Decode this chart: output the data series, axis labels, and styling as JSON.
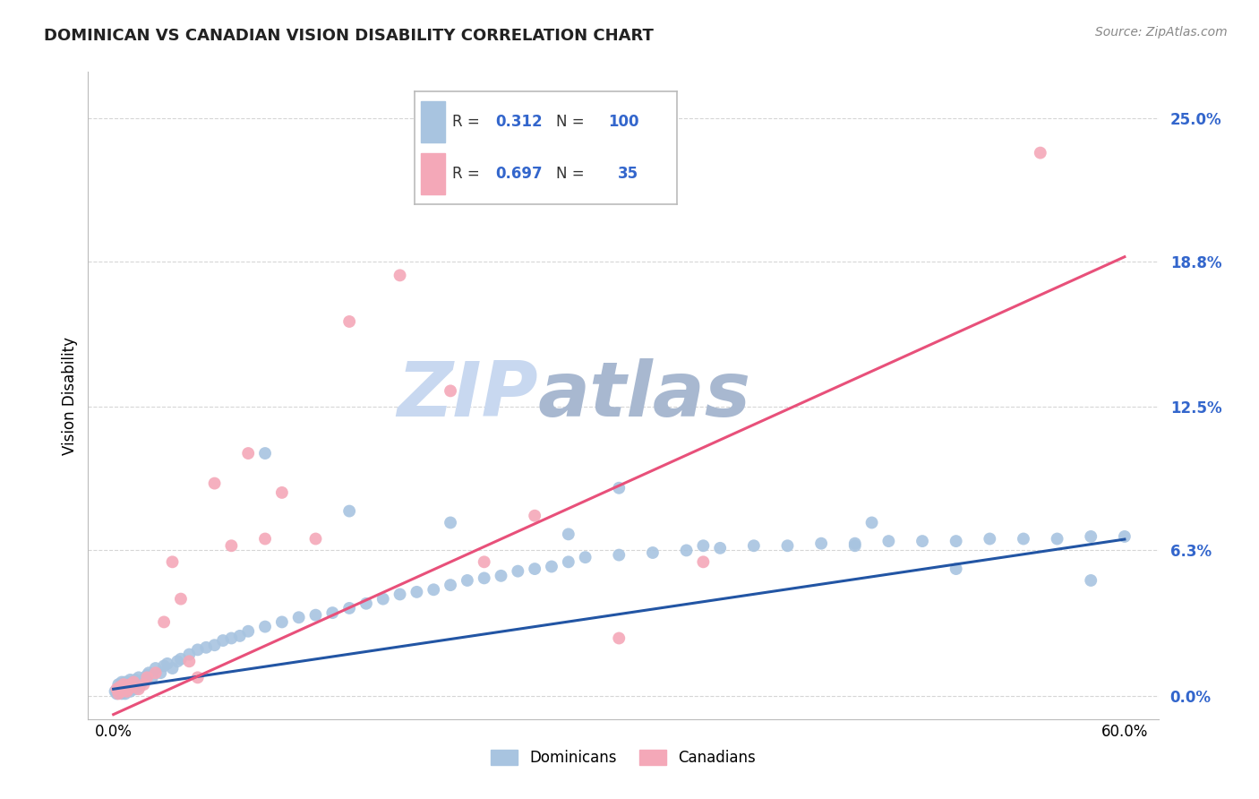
{
  "title": "DOMINICAN VS CANADIAN VISION DISABILITY CORRELATION CHART",
  "source": "Source: ZipAtlas.com",
  "ylabel": "Vision Disability",
  "ytick_labels": [
    "0.0%",
    "6.3%",
    "12.5%",
    "18.8%",
    "25.0%"
  ],
  "ytick_values": [
    0.0,
    6.3,
    12.5,
    18.8,
    25.0
  ],
  "xmin": 0.0,
  "xmax": 60.0,
  "ymin": -1.0,
  "ymax": 27.0,
  "blue_R": "0.312",
  "blue_N": "100",
  "pink_R": "0.697",
  "pink_N": "35",
  "blue_color": "#A8C4E0",
  "pink_color": "#F4A8B8",
  "blue_line_color": "#2255A4",
  "pink_line_color": "#E8507A",
  "legend_R_color": "#3366CC",
  "watermark_zip_color": "#C8D8F0",
  "watermark_atlas_color": "#A8B8D0",
  "background_color": "#FFFFFF",
  "grid_color": "#CCCCCC",
  "blue_x": [
    0.1,
    0.2,
    0.3,
    0.3,
    0.4,
    0.4,
    0.5,
    0.5,
    0.5,
    0.6,
    0.6,
    0.6,
    0.7,
    0.7,
    0.7,
    0.8,
    0.8,
    0.8,
    0.9,
    0.9,
    1.0,
    1.0,
    1.0,
    1.1,
    1.1,
    1.2,
    1.2,
    1.3,
    1.3,
    1.4,
    1.5,
    1.5,
    1.6,
    1.7,
    1.8,
    1.9,
    2.0,
    2.1,
    2.3,
    2.5,
    2.8,
    3.0,
    3.2,
    3.5,
    3.8,
    4.0,
    4.5,
    5.0,
    5.5,
    6.0,
    6.5,
    7.0,
    7.5,
    8.0,
    9.0,
    10.0,
    11.0,
    12.0,
    13.0,
    14.0,
    15.0,
    16.0,
    17.0,
    18.0,
    19.0,
    20.0,
    21.0,
    22.0,
    23.0,
    24.0,
    25.0,
    26.0,
    27.0,
    28.0,
    30.0,
    32.0,
    34.0,
    36.0,
    38.0,
    40.0,
    42.0,
    44.0,
    46.0,
    48.0,
    50.0,
    52.0,
    54.0,
    56.0,
    58.0,
    60.0,
    9.0,
    14.0,
    20.0,
    27.0,
    35.0,
    44.0,
    50.0,
    58.0,
    30.0,
    45.0
  ],
  "blue_y": [
    0.2,
    0.1,
    0.3,
    0.5,
    0.2,
    0.4,
    0.1,
    0.3,
    0.6,
    0.2,
    0.4,
    0.5,
    0.1,
    0.3,
    0.6,
    0.2,
    0.4,
    0.5,
    0.3,
    0.6,
    0.2,
    0.4,
    0.7,
    0.3,
    0.5,
    0.4,
    0.6,
    0.3,
    0.7,
    0.5,
    0.4,
    0.8,
    0.5,
    0.6,
    0.7,
    0.8,
    0.9,
    1.0,
    0.8,
    1.2,
    1.0,
    1.3,
    1.4,
    1.2,
    1.5,
    1.6,
    1.8,
    2.0,
    2.1,
    2.2,
    2.4,
    2.5,
    2.6,
    2.8,
    3.0,
    3.2,
    3.4,
    3.5,
    3.6,
    3.8,
    4.0,
    4.2,
    4.4,
    4.5,
    4.6,
    4.8,
    5.0,
    5.1,
    5.2,
    5.4,
    5.5,
    5.6,
    5.8,
    6.0,
    6.1,
    6.2,
    6.3,
    6.4,
    6.5,
    6.5,
    6.6,
    6.6,
    6.7,
    6.7,
    6.7,
    6.8,
    6.8,
    6.8,
    6.9,
    6.9,
    10.5,
    8.0,
    7.5,
    7.0,
    6.5,
    6.5,
    5.5,
    5.0,
    9.0,
    7.5
  ],
  "pink_x": [
    0.2,
    0.3,
    0.4,
    0.5,
    0.6,
    0.6,
    0.7,
    0.8,
    0.9,
    1.0,
    1.1,
    1.2,
    1.5,
    1.8,
    2.0,
    2.5,
    3.0,
    3.5,
    4.0,
    4.5,
    5.0,
    6.0,
    7.0,
    8.0,
    9.0,
    10.0,
    12.0,
    14.0,
    17.0,
    20.0,
    22.0,
    25.0,
    30.0,
    35.0,
    55.0
  ],
  "pink_y": [
    0.3,
    0.1,
    0.4,
    0.2,
    0.3,
    0.5,
    0.4,
    0.2,
    0.3,
    0.5,
    0.4,
    0.6,
    0.3,
    0.5,
    0.8,
    1.0,
    3.2,
    5.8,
    4.2,
    1.5,
    0.8,
    9.2,
    6.5,
    10.5,
    6.8,
    8.8,
    6.8,
    16.2,
    18.2,
    13.2,
    5.8,
    7.8,
    2.5,
    5.8,
    23.5
  ]
}
